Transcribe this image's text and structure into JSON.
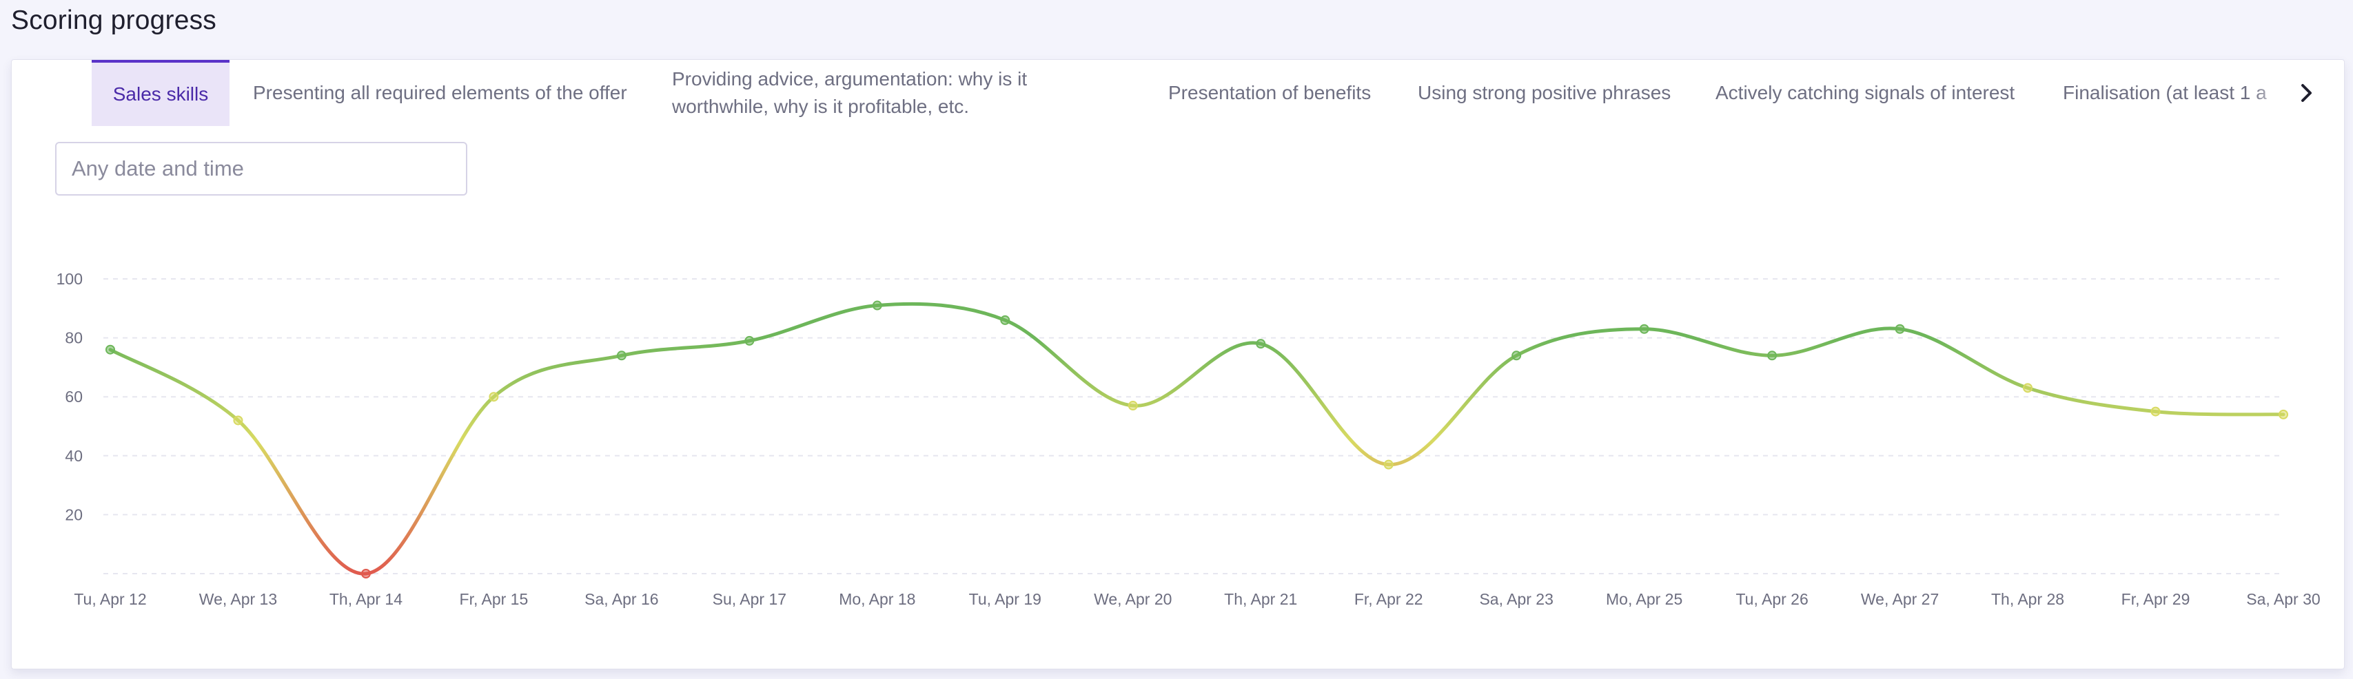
{
  "page": {
    "title": "Scoring progress"
  },
  "tabs": [
    {
      "label": "Sales skills",
      "active": true
    },
    {
      "label": "Presenting all required elements of the offer",
      "active": false
    },
    {
      "label": "Providing advice, argumentation: why is it worthwhile, why is it profitable, etc.",
      "active": false
    },
    {
      "label": "Presentation of benefits",
      "active": false
    },
    {
      "label": "Using strong positive phrases",
      "active": false
    },
    {
      "label": "Actively catching signals of interest",
      "active": false
    },
    {
      "label": "Finalisation (at least 1 a",
      "active": false
    }
  ],
  "filter": {
    "placeholder": "Any date and time"
  },
  "colors": {
    "accent": "#5a32c8",
    "tab_active_bg": "#eae4f8",
    "high": "#6db65a",
    "mid": "#d8da62",
    "low": "#e05a4e"
  },
  "icons": {
    "next": "chevron-right-icon"
  },
  "chart_data": {
    "type": "line",
    "title": "",
    "xlabel": "",
    "ylabel": "",
    "ylim": [
      0,
      100
    ],
    "yticks": [
      20,
      40,
      60,
      80,
      100
    ],
    "grid": true,
    "categories": [
      "Tu, Apr 12",
      "We, Apr 13",
      "Th, Apr 14",
      "Fr, Apr 15",
      "Sa, Apr 16",
      "Su, Apr 17",
      "Mo, Apr 18",
      "Tu, Apr 19",
      "We, Apr 20",
      "Th, Apr 21",
      "Fr, Apr 22",
      "Sa, Apr 23",
      "Mo, Apr 25",
      "Tu, Apr 26",
      "We, Apr 27",
      "Th, Apr 28",
      "Fr, Apr 29",
      "Sa, Apr 30"
    ],
    "series": [
      {
        "values": [
          76,
          52,
          0,
          60,
          74,
          79,
          91,
          86,
          57,
          78,
          37,
          74,
          83,
          74,
          83,
          63,
          55,
          54
        ]
      }
    ]
  }
}
